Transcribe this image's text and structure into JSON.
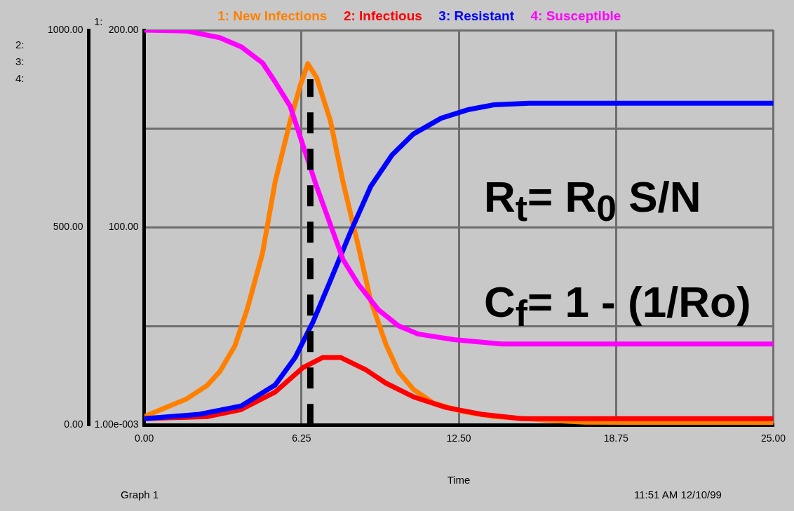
{
  "chart_data": {
    "type": "line",
    "xlabel": "Time",
    "ylabel": "1:",
    "y2label": "2: 3: 4:",
    "xlim": [
      0,
      25
    ],
    "xticks": [
      {
        "value": 0,
        "label": "0.00"
      },
      {
        "value": 6.25,
        "label": "6.25"
      },
      {
        "value": 12.5,
        "label": "12.50"
      },
      {
        "value": 18.75,
        "label": "18.75"
      },
      {
        "value": 25,
        "label": "25.00"
      }
    ],
    "ylim": [
      0.001,
      200
    ],
    "yticks": [
      {
        "value": 0.001,
        "label": "1.00e-003"
      },
      {
        "value": 100,
        "label": "100.00"
      },
      {
        "value": 200,
        "label": "200.00"
      }
    ],
    "y2lim": [
      0,
      1000
    ],
    "y2ticks": [
      {
        "value": 0,
        "label": "0.00"
      },
      {
        "value": 250,
        "label": null
      },
      {
        "value": 500,
        "label": "500.00"
      },
      {
        "value": 750,
        "label": null
      },
      {
        "value": 1000,
        "label": "1000.00"
      }
    ],
    "grid": true,
    "legend": "top",
    "marker": "none",
    "line_style": "solid",
    "ref_lines": [
      {
        "axis": "x",
        "value": 6.6,
        "color": "#000000",
        "line_style": "dashed"
      }
    ],
    "annotations": [
      "R$_{t}$= R$_{0}$ S/N",
      "C$_{f}$= 1 - (1/Ro)",
      "Graph 1",
      "11:51  AM   12/10/99"
    ],
    "series": [
      {
        "name": "1: New Infections",
        "color": "#ff8000",
        "x": [
          0,
          0.85,
          1.66,
          2.5,
          3.0,
          3.6,
          4.1,
          4.7,
          5.2,
          5.8,
          6.2,
          6.5,
          6.85,
          7.4,
          7.9,
          8.5,
          9.0,
          9.6,
          10.1,
          10.7,
          11.5,
          12.6,
          13.9,
          15.9,
          17.5,
          25
        ],
        "values": [
          4.2,
          8.8,
          13,
          20,
          27,
          40,
          59,
          87,
          123,
          154,
          172,
          183,
          176,
          154,
          123,
          91,
          63,
          41,
          27,
          18,
          11,
          7,
          4.2,
          2.5,
          1.4,
          1
        ]
      },
      {
        "name": "2: Infectious",
        "color": "#ff0000",
        "axis": "y2",
        "x": [
          0,
          2.5,
          3.85,
          5.2,
          6.3,
          7.1,
          7.8,
          8.8,
          9.6,
          10.7,
          12.0,
          13.4,
          15.0,
          25
        ],
        "values": [
          16,
          21,
          39,
          83,
          145,
          171,
          171,
          140,
          106,
          71,
          44,
          27,
          16,
          16
        ]
      },
      {
        "name": "3: Resistant",
        "color": "#0000ff",
        "axis": "y2",
        "x": [
          0,
          2.2,
          3.85,
          5.2,
          6.0,
          6.7,
          7.4,
          8.2,
          9.0,
          9.85,
          10.7,
          11.8,
          12.9,
          13.9,
          15.3,
          25
        ],
        "values": [
          16,
          27,
          48,
          101,
          171,
          260,
          366,
          489,
          604,
          684,
          737,
          777,
          799,
          811,
          815,
          815
        ]
      },
      {
        "name": "4: Susceptible",
        "color": "#ff00ff",
        "axis": "y2",
        "x": [
          0,
          1.66,
          3.0,
          3.85,
          4.7,
          5.2,
          5.8,
          6.3,
          6.85,
          7.4,
          7.9,
          8.5,
          9.3,
          10.1,
          10.9,
          12.3,
          14.2,
          25
        ],
        "values": [
          1000,
          998,
          981,
          958,
          917,
          869,
          807,
          710,
          604,
          507,
          419,
          357,
          292,
          251,
          230,
          216,
          205,
          205
        ]
      }
    ]
  }
}
